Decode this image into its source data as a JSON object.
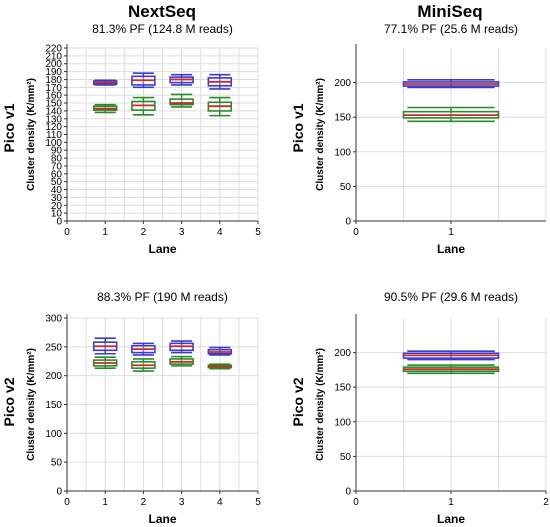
{
  "figure": {
    "columns": [
      "NextSeq",
      "MiniSeq"
    ],
    "rows": [
      "Pico v1",
      "Pico v2"
    ]
  },
  "colors": {
    "blue": "#3a3acc",
    "red": "#cc2a2a",
    "green": "#2a8a2a",
    "grid": "#dddddd",
    "axis": "#333333"
  },
  "chart_data": [
    {
      "type": "boxplot",
      "title": "81.3% PF (124.8 M reads)",
      "xlabel": "Lane",
      "ylabel": "Cluster density (K/mm²)",
      "xlim": [
        0,
        5
      ],
      "ylim": [
        0,
        220
      ],
      "xticks": [
        0,
        1,
        2,
        3,
        4,
        5
      ],
      "yticks": [
        0,
        10,
        20,
        30,
        40,
        50,
        60,
        70,
        80,
        90,
        100,
        110,
        120,
        130,
        140,
        150,
        160,
        170,
        180,
        190,
        200,
        210,
        220
      ],
      "box_half_width": 0.3,
      "series": [
        {
          "color": "blue",
          "points": [
            {
              "x": 1,
              "low": 173,
              "q1": 174,
              "med": 176,
              "q3": 178,
              "high": 179
            },
            {
              "x": 2,
              "low": 170,
              "q1": 173,
              "med": 179,
              "q3": 184,
              "high": 188
            },
            {
              "x": 3,
              "low": 173,
              "q1": 176,
              "med": 180,
              "q3": 183,
              "high": 186
            },
            {
              "x": 4,
              "low": 168,
              "q1": 172,
              "med": 177,
              "q3": 182,
              "high": 186
            }
          ]
        },
        {
          "color": "green",
          "points": [
            {
              "x": 1,
              "low": 138,
              "q1": 141,
              "med": 143,
              "q3": 146,
              "high": 148
            },
            {
              "x": 2,
              "low": 135,
              "q1": 141,
              "med": 147,
              "q3": 152,
              "high": 157
            },
            {
              "x": 3,
              "low": 145,
              "q1": 148,
              "med": 150,
              "q3": 155,
              "high": 161
            },
            {
              "x": 4,
              "low": 134,
              "q1": 140,
              "med": 146,
              "q3": 151,
              "high": 157
            }
          ]
        }
      ]
    },
    {
      "type": "boxplot",
      "title": "77.1% PF (25.6 M reads)",
      "xlabel": "Lane",
      "ylabel": "Cluster density (K/mm²)",
      "xlim": [
        0,
        2
      ],
      "ylim": [
        0,
        250
      ],
      "xticks": [
        0,
        1
      ],
      "yticks": [
        0,
        50,
        100,
        150,
        200
      ],
      "box_half_width": 0.5,
      "series": [
        {
          "color": "blue",
          "points": [
            {
              "x": 1,
              "low": 193,
              "q1": 195,
              "med": 198,
              "q3": 201,
              "high": 204
            }
          ]
        },
        {
          "color": "green",
          "points": [
            {
              "x": 1,
              "low": 144,
              "q1": 149,
              "med": 153,
              "q3": 158,
              "high": 164
            }
          ]
        }
      ]
    },
    {
      "type": "boxplot",
      "title": "88.3% PF (190 M reads)",
      "xlabel": "Lane",
      "ylabel": "Cluster density (K/mm²)",
      "xlim": [
        0,
        5
      ],
      "ylim": [
        0,
        300
      ],
      "xticks": [
        0,
        1,
        2,
        3,
        4,
        5
      ],
      "yticks": [
        0,
        50,
        100,
        150,
        200,
        250,
        300
      ],
      "box_half_width": 0.3,
      "series": [
        {
          "color": "blue",
          "points": [
            {
              "x": 1,
              "low": 238,
              "q1": 244,
              "med": 251,
              "q3": 258,
              "high": 265
            },
            {
              "x": 2,
              "low": 236,
              "q1": 240,
              "med": 246,
              "q3": 252,
              "high": 256
            },
            {
              "x": 3,
              "low": 240,
              "q1": 244,
              "med": 251,
              "q3": 256,
              "high": 260
            },
            {
              "x": 4,
              "low": 236,
              "q1": 238,
              "med": 241,
              "q3": 245,
              "high": 249
            }
          ]
        },
        {
          "color": "green",
          "points": [
            {
              "x": 1,
              "low": 213,
              "q1": 217,
              "med": 222,
              "q3": 227,
              "high": 232
            },
            {
              "x": 2,
              "low": 208,
              "q1": 213,
              "med": 218,
              "q3": 224,
              "high": 229
            },
            {
              "x": 3,
              "low": 217,
              "q1": 220,
              "med": 224,
              "q3": 229,
              "high": 233
            },
            {
              "x": 4,
              "low": 212,
              "q1": 214,
              "med": 216,
              "q3": 218,
              "high": 220
            }
          ]
        }
      ]
    },
    {
      "type": "boxplot",
      "title": "90.5% PF (29.6 M reads)",
      "xlabel": "Lane",
      "ylabel": "Cluster density (K/mm²)",
      "xlim": [
        0,
        2
      ],
      "ylim": [
        0,
        250
      ],
      "xticks": [
        0,
        1,
        2
      ],
      "yticks": [
        0,
        50,
        100,
        150,
        200
      ],
      "box_half_width": 0.5,
      "series": [
        {
          "color": "blue",
          "points": [
            {
              "x": 1,
              "low": 190,
              "q1": 192,
              "med": 196,
              "q3": 199,
              "high": 202
            }
          ]
        },
        {
          "color": "green",
          "points": [
            {
              "x": 1,
              "low": 170,
              "q1": 173,
              "med": 176,
              "q3": 179,
              "high": 182
            }
          ]
        }
      ]
    }
  ]
}
